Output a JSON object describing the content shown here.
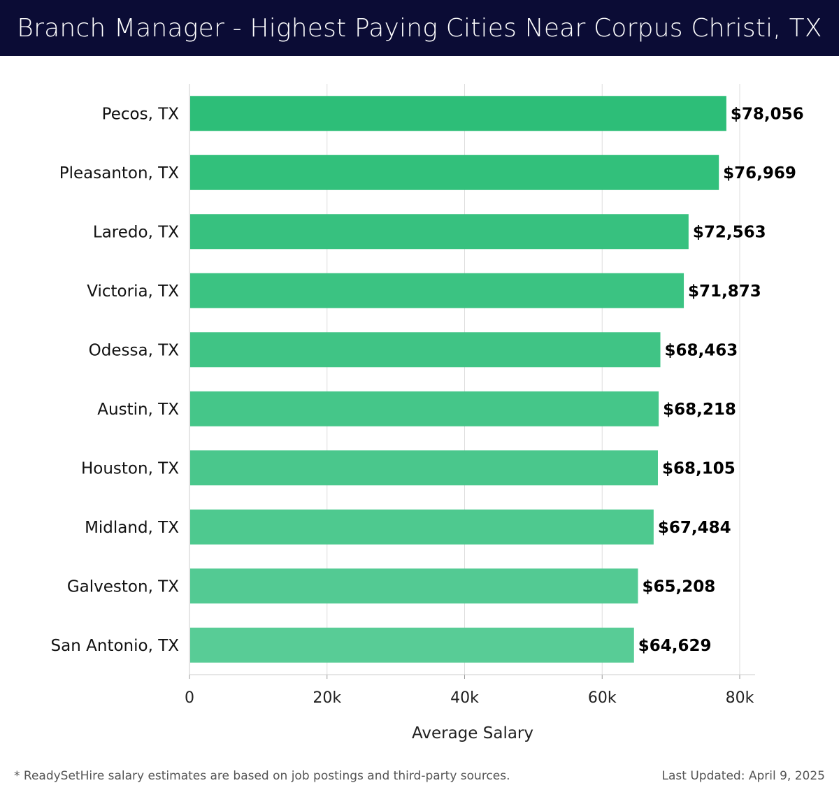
{
  "header": {
    "title": "Branch Manager - Highest Paying Cities Near Corpus Christi, TX",
    "background": "#0b0c35"
  },
  "chart_data": {
    "type": "bar",
    "orientation": "horizontal",
    "title": "Branch Manager - Highest Paying Cities Near Corpus Christi, TX",
    "xlabel": "Average Salary",
    "ylabel": "",
    "xlim": [
      0,
      82000
    ],
    "xticks": [
      0,
      20000,
      40000,
      60000,
      80000
    ],
    "xtick_labels": [
      "0",
      "20k",
      "40k",
      "60k",
      "80k"
    ],
    "grid": true,
    "categories": [
      "Pecos, TX",
      "Pleasanton, TX",
      "Laredo, TX",
      "Victoria, TX",
      "Odessa, TX",
      "Austin, TX",
      "Houston, TX",
      "Midland, TX",
      "Galveston, TX",
      "San Antonio, TX"
    ],
    "values": [
      78056,
      76969,
      72563,
      71873,
      68463,
      68218,
      68105,
      67484,
      65208,
      64629
    ],
    "value_labels": [
      "$78,056",
      "$76,969",
      "$72,563",
      "$71,873",
      "$68,463",
      "$68,218",
      "$68,105",
      "$67,484",
      "$65,208",
      "$64,629"
    ],
    "bar_color_start": "#2dbe78",
    "bar_color_end": "#58cc96"
  },
  "footer": {
    "note": "* ReadySetHire salary estimates are based on job postings and third-party sources.",
    "updated": "Last Updated: April 9, 2025"
  }
}
